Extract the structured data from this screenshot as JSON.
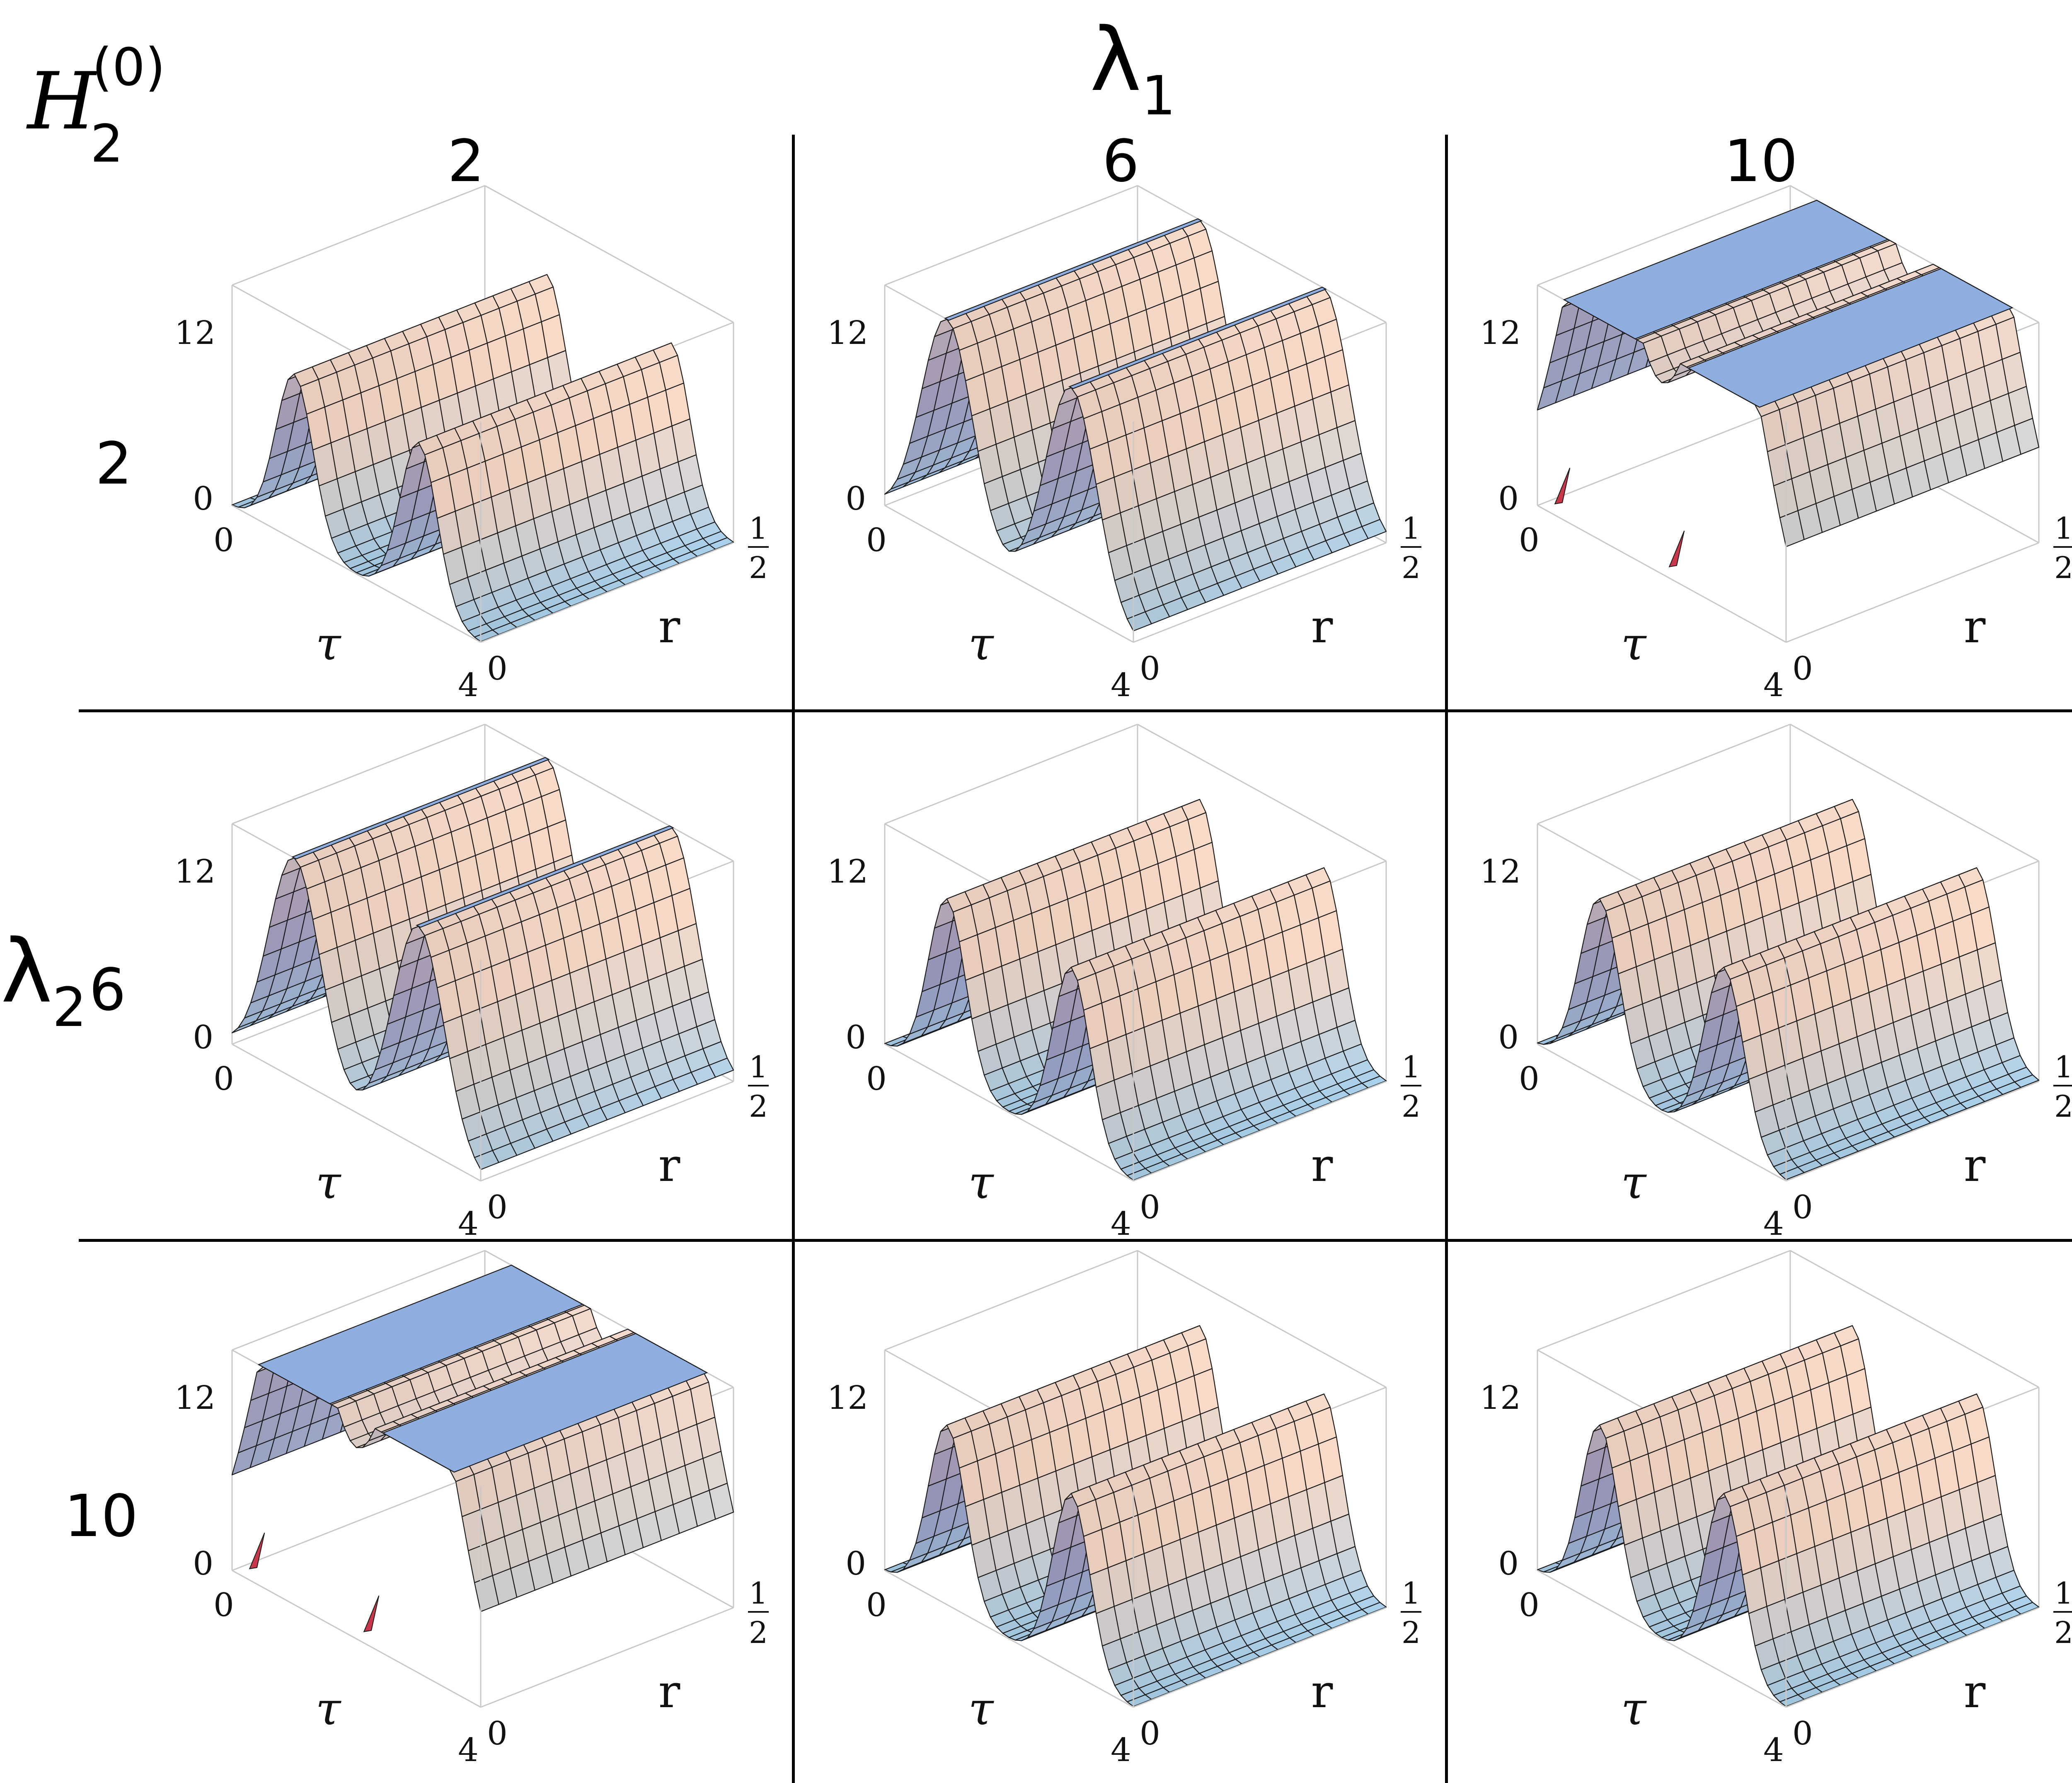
{
  "header": {
    "top_label": "λ",
    "top_label_sub": "1",
    "side_label": "λ",
    "side_label_sub": "2",
    "corner_label": "H",
    "corner_label_sub": "2",
    "corner_label_sup": "(0)"
  },
  "chart_data": {
    "type": "surface-grid",
    "column_values": [
      "2",
      "6",
      "10"
    ],
    "row_values": [
      "2",
      "6",
      "10"
    ],
    "axes": {
      "tau_label": "τ",
      "r_label": "r",
      "z_ticks": [
        "0",
        "12"
      ],
      "tau_ticks": [
        "0",
        "4"
      ],
      "r_ticks": [
        "0"
      ],
      "r_tick_half_num": "1",
      "r_tick_half_den": "2",
      "tau_range": [
        0,
        4
      ],
      "r_range": [
        0,
        0.5
      ],
      "z_range": [
        0,
        12
      ]
    },
    "panels": [
      {
        "row": "2",
        "col": "2",
        "peak_height": 12,
        "peak_width": 0.16,
        "clipped": false,
        "red_patch": false
      },
      {
        "row": "2",
        "col": "6",
        "peak_height": 16,
        "peak_width": 0.22,
        "clipped": true,
        "red_patch": false
      },
      {
        "row": "2",
        "col": "10",
        "peak_height": 24,
        "peak_width": 0.34,
        "clipped": true,
        "red_patch": true
      },
      {
        "row": "6",
        "col": "2",
        "peak_height": 16,
        "peak_width": 0.22,
        "clipped": true,
        "red_patch": false
      },
      {
        "row": "6",
        "col": "6",
        "peak_height": 13,
        "peak_width": 0.16,
        "clipped": true,
        "red_patch": false
      },
      {
        "row": "6",
        "col": "10",
        "peak_height": 13,
        "peak_width": 0.17,
        "clipped": true,
        "red_patch": false
      },
      {
        "row": "10",
        "col": "2",
        "peak_height": 24,
        "peak_width": 0.34,
        "clipped": true,
        "red_patch": true
      },
      {
        "row": "10",
        "col": "6",
        "peak_height": 13,
        "peak_width": 0.16,
        "clipped": true,
        "red_patch": false
      },
      {
        "row": "10",
        "col": "10",
        "peak_height": 13,
        "peak_width": 0.16,
        "clipped": true,
        "red_patch": false
      }
    ],
    "colors": {
      "flat": "#a9d2ee",
      "peak": "#f8dccc",
      "flank": "#3d4aa8",
      "cap": "#8eaee0",
      "red": "#c8374a",
      "mesh": "#1a1a1a",
      "box": "#c8c8c8"
    }
  }
}
